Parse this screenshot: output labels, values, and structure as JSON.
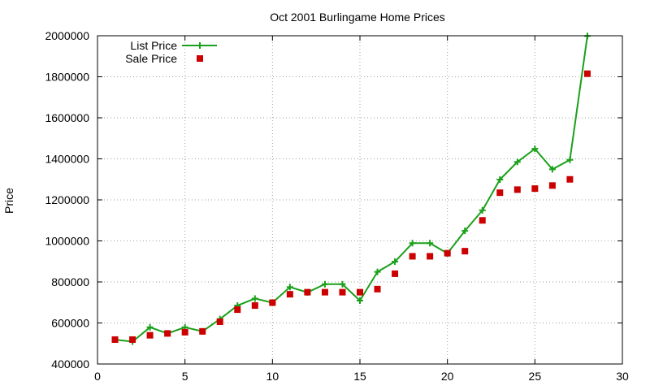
{
  "chart_data": {
    "type": "line",
    "title": "Oct 2001 Burlingame Home Prices",
    "xlabel": "",
    "ylabel": "Price",
    "xlim": [
      0,
      30
    ],
    "ylim": [
      400000,
      2000000
    ],
    "xticks": [
      0,
      5,
      10,
      15,
      20,
      25,
      30
    ],
    "yticks": [
      400000,
      600000,
      800000,
      1000000,
      1200000,
      1400000,
      1600000,
      1800000,
      2000000
    ],
    "xtick_labels": [
      "0",
      "5",
      "10",
      "15",
      "20",
      "25",
      "30"
    ],
    "ytick_labels": [
      "400000",
      "600000",
      "800000",
      "1000000",
      "1200000",
      "1400000",
      "1600000",
      "1800000",
      "2000000"
    ],
    "grid": true,
    "legend_position": "top-left",
    "series": [
      {
        "name": "List Price",
        "style": "linespoints",
        "marker": "plus",
        "color": "#1aa01a",
        "x": [
          1,
          2,
          3,
          4,
          5,
          6,
          7,
          8,
          9,
          10,
          11,
          12,
          13,
          14,
          15,
          16,
          17,
          18,
          19,
          20,
          21,
          22,
          23,
          24,
          25,
          26,
          27,
          28
        ],
        "y": [
          519000,
          509000,
          579000,
          549000,
          579000,
          559000,
          619000,
          685000,
          719000,
          699000,
          775000,
          749000,
          789000,
          789000,
          709000,
          849000,
          899000,
          989000,
          989000,
          939000,
          1049000,
          1149000,
          1299000,
          1385000,
          1449000,
          1349000,
          1395000,
          1999000
        ]
      },
      {
        "name": "Sale Price",
        "style": "points",
        "marker": "square",
        "color": "#cc0000",
        "x": [
          1,
          2,
          3,
          4,
          5,
          6,
          7,
          8,
          9,
          10,
          11,
          12,
          13,
          14,
          15,
          16,
          17,
          18,
          19,
          20,
          21,
          22,
          23,
          24,
          25,
          26,
          27,
          28
        ],
        "y": [
          519000,
          519000,
          540000,
          549000,
          555000,
          559000,
          606000,
          665000,
          685000,
          699000,
          740000,
          750000,
          750000,
          750000,
          750000,
          765000,
          840000,
          925000,
          925000,
          940000,
          950000,
          1100000,
          1235000,
          1250000,
          1255000,
          1270000,
          1300000,
          1815000
        ]
      }
    ]
  }
}
